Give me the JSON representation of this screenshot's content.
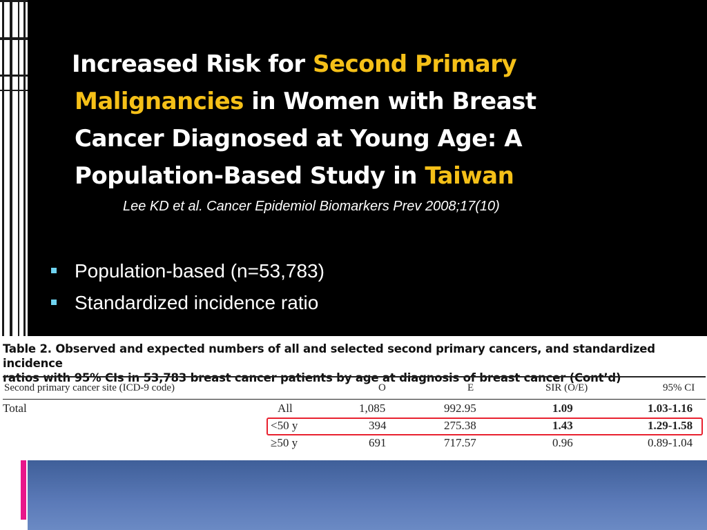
{
  "slide": {
    "title": {
      "part1": "Increased Risk for",
      "highlight1": "Second Primary",
      "highlight2": "Malignancies",
      "part2": "in Women with Breast",
      "line3": "Cancer Diagnosed at Young Age: A",
      "line4": "Population-Based Study in",
      "highlight3": "Taiwan"
    },
    "citation": "Lee KD et al. Cancer Epidemiol Biomarkers Prev 2008;17(10)",
    "bullets": [
      "Population-based (n=53,783)",
      "Standardized incidence ratio"
    ]
  },
  "table": {
    "caption_line1": "Table 2.  Observed and expected numbers of all and selected second primary cancers, and standardized incidence",
    "caption_line2": "ratios with 95% CIs in 53,783 breast cancer patients by age at diagnosis of breast cancer (Cont’d)",
    "headers": {
      "site": "Second primary cancer site (ICD-9 code)",
      "o": "O",
      "e": "E",
      "sir": "SIR (O/E)",
      "ci": "95% CI"
    },
    "row_label": "Total",
    "rows": [
      {
        "group": "All",
        "o": "1,085",
        "e": "992.95",
        "sir": "1.09",
        "ci": "1.03-1.16"
      },
      {
        "group": "<50 y",
        "o": "394",
        "e": "275.38",
        "sir": "1.43",
        "ci": "1.29-1.58"
      },
      {
        "group": "≥50 y",
        "o": "691",
        "e": "717.57",
        "sir": "0.96",
        "ci": "0.89-1.04"
      }
    ]
  },
  "colors": {
    "highlight_text": "#f5c018",
    "bullet_marker": "#6fd3f0",
    "highlight_box": "#e8202e",
    "footer_bar": "#5b7ab8",
    "accent_bar": "#e8168a"
  }
}
